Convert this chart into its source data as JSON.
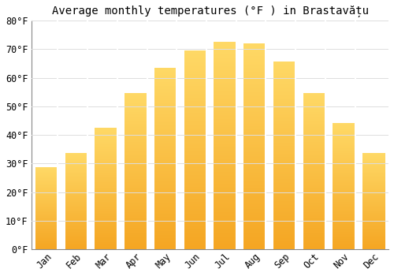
{
  "title": "Average monthly temperatures (°F ) in Brastavățu",
  "months": [
    "Jan",
    "Feb",
    "Mar",
    "Apr",
    "May",
    "Jun",
    "Jul",
    "Aug",
    "Sep",
    "Oct",
    "Nov",
    "Dec"
  ],
  "values": [
    28.5,
    33.5,
    42.5,
    54.5,
    63.5,
    69.5,
    72.5,
    72.0,
    65.5,
    54.5,
    44.0,
    33.5
  ],
  "bar_color_bottom": "#F5A623",
  "bar_color_top": "#FFD966",
  "background_color": "#FFFFFF",
  "grid_color": "#DDDDDD",
  "ylim": [
    0,
    80
  ],
  "ytick_step": 10,
  "title_fontsize": 10,
  "tick_fontsize": 8.5
}
